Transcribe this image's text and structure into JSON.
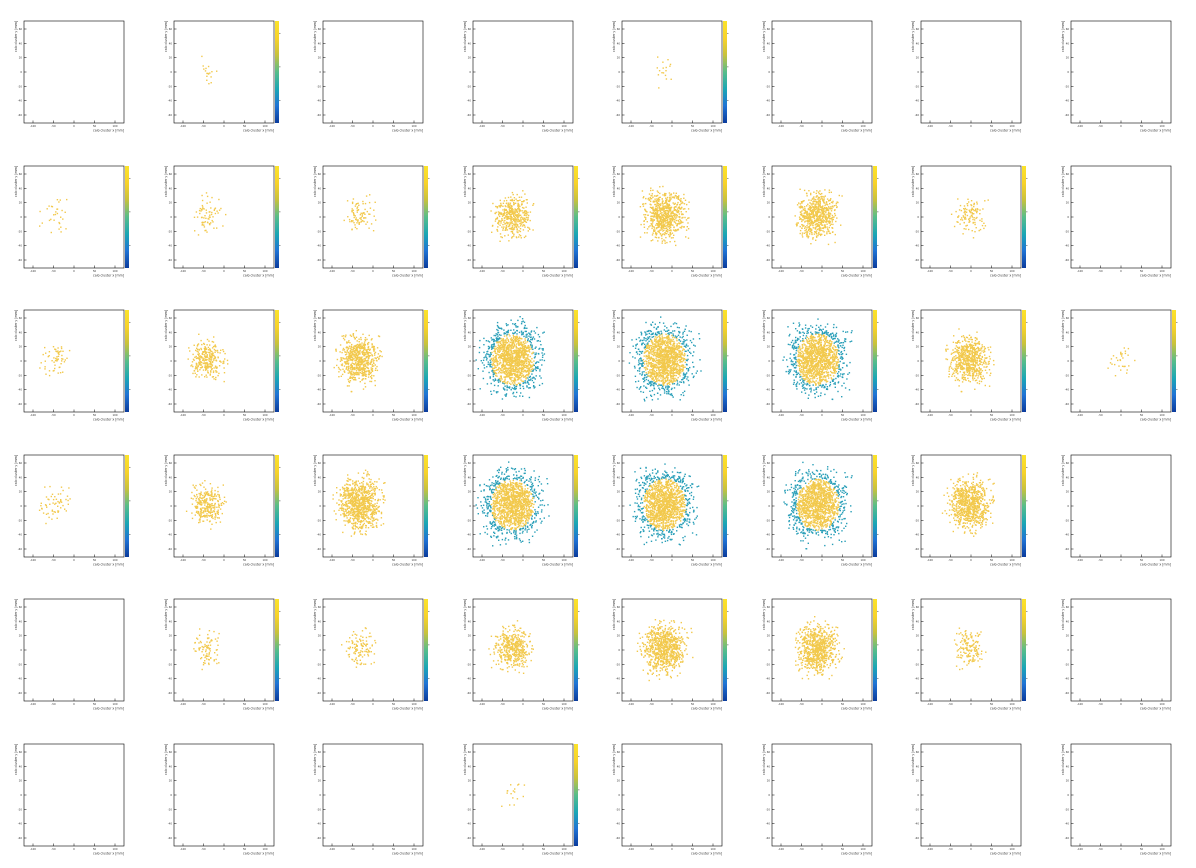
{
  "layout": {
    "rows": 6,
    "cols": 8
  },
  "panel_labels": {
    "title": "",
    "xlabel": "calo cluster x [mm]",
    "ylabel": "calo cluster y [mm]"
  },
  "axes": {
    "xticks": [
      "-100",
      "-50",
      "0",
      "50",
      "100"
    ],
    "yticks": [
      "60",
      "40",
      "20",
      "0",
      "-20",
      "-40",
      "-60"
    ]
  },
  "colors": {
    "frame": "#000000",
    "low": "#2a9fb8",
    "high": "#f2c94c",
    "scale": [
      "#0b3b9c",
      "#1f73d4",
      "#1aa6b5",
      "#57bd8a",
      "#c9c23b",
      "#f7d22a",
      "#fbe32b"
    ]
  },
  "chart_data": {
    "type": "heatmap",
    "panels": [
      {
        "row": 0,
        "col": 0,
        "density": 0,
        "colorbar": false
      },
      {
        "row": 0,
        "col": 1,
        "density": 0.01,
        "colorbar": true
      },
      {
        "row": 0,
        "col": 2,
        "density": 0,
        "colorbar": false
      },
      {
        "row": 0,
        "col": 3,
        "density": 0,
        "colorbar": false
      },
      {
        "row": 0,
        "col": 4,
        "density": 0.01,
        "colorbar": true
      },
      {
        "row": 0,
        "col": 5,
        "density": 0,
        "colorbar": false
      },
      {
        "row": 0,
        "col": 6,
        "density": 0,
        "colorbar": false
      },
      {
        "row": 0,
        "col": 7,
        "density": 0,
        "colorbar": false
      },
      {
        "row": 1,
        "col": 0,
        "density": 0.02,
        "colorbar": true
      },
      {
        "row": 1,
        "col": 1,
        "density": 0.05,
        "colorbar": true
      },
      {
        "row": 1,
        "col": 2,
        "density": 0.06,
        "colorbar": true
      },
      {
        "row": 1,
        "col": 3,
        "density": 0.3,
        "colorbar": true
      },
      {
        "row": 1,
        "col": 4,
        "density": 0.5,
        "colorbar": true
      },
      {
        "row": 1,
        "col": 5,
        "density": 0.45,
        "colorbar": true
      },
      {
        "row": 1,
        "col": 6,
        "density": 0.08,
        "colorbar": true
      },
      {
        "row": 1,
        "col": 7,
        "density": 0,
        "colorbar": false
      },
      {
        "row": 2,
        "col": 0,
        "density": 0.04,
        "colorbar": true
      },
      {
        "row": 2,
        "col": 1,
        "density": 0.2,
        "colorbar": true
      },
      {
        "row": 2,
        "col": 2,
        "density": 0.45,
        "colorbar": true
      },
      {
        "row": 2,
        "col": 3,
        "density": 1.0,
        "colorbar": true
      },
      {
        "row": 2,
        "col": 4,
        "density": 1.0,
        "colorbar": true
      },
      {
        "row": 2,
        "col": 5,
        "density": 1.0,
        "colorbar": true
      },
      {
        "row": 2,
        "col": 6,
        "density": 0.45,
        "colorbar": true
      },
      {
        "row": 2,
        "col": 7,
        "density": 0.02,
        "colorbar": true
      },
      {
        "row": 3,
        "col": 0,
        "density": 0.04,
        "colorbar": true
      },
      {
        "row": 3,
        "col": 1,
        "density": 0.2,
        "colorbar": true
      },
      {
        "row": 3,
        "col": 2,
        "density": 0.6,
        "colorbar": true
      },
      {
        "row": 3,
        "col": 3,
        "density": 1.0,
        "colorbar": true
      },
      {
        "row": 3,
        "col": 4,
        "density": 1.0,
        "colorbar": true
      },
      {
        "row": 3,
        "col": 5,
        "density": 1.0,
        "colorbar": true
      },
      {
        "row": 3,
        "col": 6,
        "density": 0.55,
        "colorbar": true
      },
      {
        "row": 3,
        "col": 7,
        "density": 0,
        "colorbar": false
      },
      {
        "row": 4,
        "col": 0,
        "density": 0,
        "colorbar": false
      },
      {
        "row": 4,
        "col": 1,
        "density": 0.06,
        "colorbar": true
      },
      {
        "row": 4,
        "col": 2,
        "density": 0.08,
        "colorbar": true
      },
      {
        "row": 4,
        "col": 3,
        "density": 0.3,
        "colorbar": true
      },
      {
        "row": 4,
        "col": 4,
        "density": 0.55,
        "colorbar": true
      },
      {
        "row": 4,
        "col": 5,
        "density": 0.5,
        "colorbar": true
      },
      {
        "row": 4,
        "col": 6,
        "density": 0.1,
        "colorbar": true
      },
      {
        "row": 4,
        "col": 7,
        "density": 0,
        "colorbar": false
      },
      {
        "row": 5,
        "col": 0,
        "density": 0,
        "colorbar": false
      },
      {
        "row": 5,
        "col": 1,
        "density": 0,
        "colorbar": false
      },
      {
        "row": 5,
        "col": 2,
        "density": 0,
        "colorbar": false
      },
      {
        "row": 5,
        "col": 3,
        "density": 0.01,
        "colorbar": true
      },
      {
        "row": 5,
        "col": 4,
        "density": 0,
        "colorbar": false
      },
      {
        "row": 5,
        "col": 5,
        "density": 0,
        "colorbar": false
      },
      {
        "row": 5,
        "col": 6,
        "density": 0,
        "colorbar": false
      },
      {
        "row": 5,
        "col": 7,
        "density": 0,
        "colorbar": false
      }
    ]
  }
}
